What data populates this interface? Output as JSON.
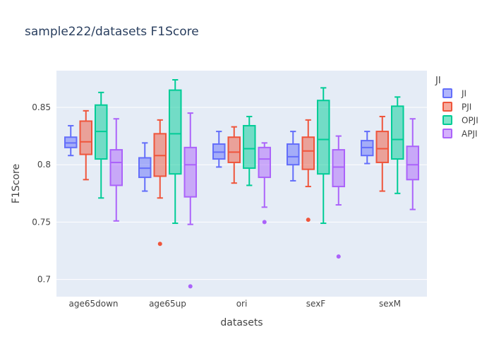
{
  "chart_data": {
    "type": "box",
    "title": "sample222/datasets F1Score",
    "xlabel": "datasets",
    "ylabel": "F1Score",
    "ylim": [
      0.685,
      0.882
    ],
    "yticks": [
      0.7,
      0.75,
      0.8,
      0.85
    ],
    "ytick_labels": [
      "0.7",
      "0.75",
      "0.8",
      "0.85"
    ],
    "categories": [
      "age65down",
      "age65up",
      "ori",
      "sexF",
      "sexM"
    ],
    "legend_title": "JI",
    "legend_position": "right",
    "series": [
      {
        "name": "JI",
        "color": "#636efa",
        "boxes": [
          {
            "min": 0.808,
            "q1": 0.815,
            "median": 0.819,
            "q3": 0.824,
            "max": 0.834,
            "outliers": []
          },
          {
            "min": 0.777,
            "q1": 0.789,
            "median": 0.797,
            "q3": 0.806,
            "max": 0.819,
            "outliers": []
          },
          {
            "min": 0.798,
            "q1": 0.805,
            "median": 0.811,
            "q3": 0.818,
            "max": 0.829,
            "outliers": []
          },
          {
            "min": 0.786,
            "q1": 0.8,
            "median": 0.807,
            "q3": 0.818,
            "max": 0.829,
            "outliers": []
          },
          {
            "min": 0.801,
            "q1": 0.808,
            "median": 0.815,
            "q3": 0.821,
            "max": 0.829,
            "outliers": []
          }
        ]
      },
      {
        "name": "PJI",
        "color": "#ef553b",
        "boxes": [
          {
            "min": 0.787,
            "q1": 0.809,
            "median": 0.82,
            "q3": 0.838,
            "max": 0.847,
            "outliers": []
          },
          {
            "min": 0.771,
            "q1": 0.79,
            "median": 0.808,
            "q3": 0.827,
            "max": 0.839,
            "outliers": [
              0.731
            ]
          },
          {
            "min": 0.784,
            "q1": 0.802,
            "median": 0.811,
            "q3": 0.824,
            "max": 0.833,
            "outliers": []
          },
          {
            "min": 0.781,
            "q1": 0.796,
            "median": 0.812,
            "q3": 0.824,
            "max": 0.839,
            "outliers": [
              0.752
            ]
          },
          {
            "min": 0.777,
            "q1": 0.802,
            "median": 0.814,
            "q3": 0.829,
            "max": 0.842,
            "outliers": []
          }
        ]
      },
      {
        "name": "OPJI",
        "color": "#00cc96",
        "boxes": [
          {
            "min": 0.771,
            "q1": 0.805,
            "median": 0.829,
            "q3": 0.852,
            "max": 0.863,
            "outliers": []
          },
          {
            "min": 0.749,
            "q1": 0.792,
            "median": 0.827,
            "q3": 0.865,
            "max": 0.874,
            "outliers": []
          },
          {
            "min": 0.782,
            "q1": 0.797,
            "median": 0.814,
            "q3": 0.834,
            "max": 0.842,
            "outliers": []
          },
          {
            "min": 0.749,
            "q1": 0.792,
            "median": 0.822,
            "q3": 0.856,
            "max": 0.867,
            "outliers": []
          },
          {
            "min": 0.775,
            "q1": 0.805,
            "median": 0.822,
            "q3": 0.851,
            "max": 0.859,
            "outliers": []
          }
        ]
      },
      {
        "name": "APJI",
        "color": "#ab63fa",
        "boxes": [
          {
            "min": 0.751,
            "q1": 0.782,
            "median": 0.802,
            "q3": 0.813,
            "max": 0.84,
            "outliers": []
          },
          {
            "min": 0.748,
            "q1": 0.772,
            "median": 0.8,
            "q3": 0.815,
            "max": 0.845,
            "outliers": [
              0.694
            ]
          },
          {
            "min": 0.763,
            "q1": 0.789,
            "median": 0.805,
            "q3": 0.815,
            "max": 0.819,
            "outliers": [
              0.75
            ]
          },
          {
            "min": 0.765,
            "q1": 0.781,
            "median": 0.798,
            "q3": 0.813,
            "max": 0.825,
            "outliers": [
              0.72
            ]
          },
          {
            "min": 0.761,
            "q1": 0.787,
            "median": 0.8,
            "q3": 0.816,
            "max": 0.84,
            "outliers": []
          }
        ]
      }
    ]
  },
  "colors": {
    "plot_background": "#e5ecf6",
    "gridline": "#ffffff",
    "text": "#444444",
    "title": "#2a3f5f"
  }
}
